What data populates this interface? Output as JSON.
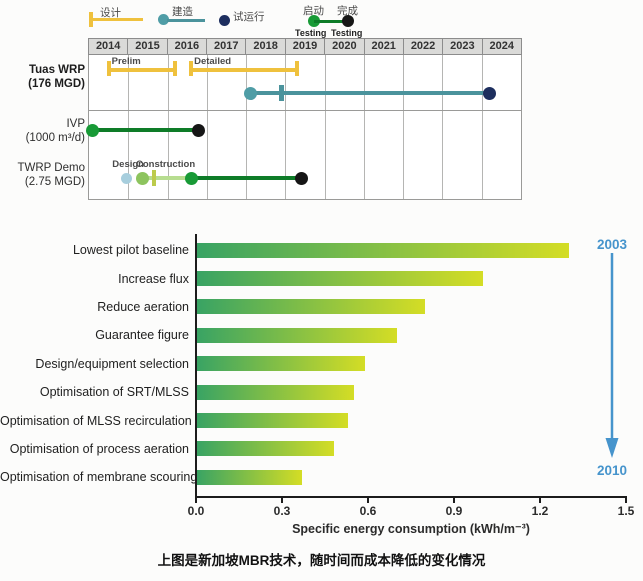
{
  "caption": "上图是新加坡MBR技术，随时间而成本降低的变化情况",
  "colors": {
    "yellow": "#efc13d",
    "teal": "#4b939c",
    "teal_light": "#4f9da6",
    "navy": "#1d2e5e",
    "green": "#189a36",
    "dark_green": "#0e7c28",
    "black": "#161616",
    "light_blue": "#a7cedd",
    "light_green": "#8dc45e",
    "light_green_line": "#b7dd90",
    "olive": "#bccb4b",
    "annotation_blue": "#4694cc",
    "bar_start": "#38a364",
    "bar_end": "#d4dd25"
  },
  "chart_data": [
    {
      "type": "gantt",
      "years": [
        2014,
        2015,
        2016,
        2017,
        2018,
        2019,
        2020,
        2021,
        2022,
        2023,
        2024
      ],
      "year_range": [
        2014,
        2025
      ],
      "legend": {
        "design": "设计",
        "construction": "建造",
        "trial_run": "试运行",
        "test_start": "启动",
        "test_start_sub": "Testing",
        "test_end": "完成",
        "test_end_sub": "Testing"
      },
      "rows": [
        {
          "label": "Tuas WRP",
          "sublabel": "(176 MGD)",
          "elements": [
            {
              "kind": "capbar",
              "label": "Prelim",
              "color": "yellow",
              "start": 2014.5,
              "end": 2016.2,
              "lane": 0
            },
            {
              "kind": "capbar",
              "label": "Detailed",
              "color": "yellow",
              "start": 2016.6,
              "end": 2019.3,
              "lane": 0
            },
            {
              "kind": "testline",
              "start": 2018.1,
              "end": 2024.2,
              "tick": 2018.9,
              "line": "teal",
              "tick_color": "teal",
              "start_dot": "teal_light",
              "end_dot": "navy",
              "lane": 1
            }
          ]
        },
        {
          "label": "IVP",
          "sublabel": "(1000 m³/d)",
          "elements": [
            {
              "kind": "testline",
              "start": 2014.1,
              "end": 2016.8,
              "line": "dark_green",
              "start_dot": "green",
              "end_dot": "black",
              "lane": 0
            }
          ]
        },
        {
          "label": "TWRP Demo",
          "sublabel": "(2.75 MGD)",
          "elements": [
            {
              "kind": "dot",
              "at": 2014.95,
              "color": "light_blue",
              "label": "Design",
              "lane": 0
            },
            {
              "kind": "testline",
              "start": 2015.35,
              "end": 2016.6,
              "tick": 2015.65,
              "line": "light_green_line",
              "tick_color": "olive",
              "start_dot": "light_green",
              "label": "Construction",
              "lane": 0
            },
            {
              "kind": "testline",
              "start": 2016.6,
              "end": 2019.4,
              "line": "dark_green",
              "start_dot": "green",
              "end_dot": "black",
              "lane": 0
            }
          ]
        }
      ]
    },
    {
      "type": "bar",
      "categories": [
        "Lowest pilot baseline",
        "Increase flux",
        "Reduce aeration",
        "Guarantee figure",
        "Design/equipment selection",
        "Optimisation of SRT/MLSS",
        "Optimisation of MLSS recirculation",
        "Optimisation of process aeration",
        "Optimisation of membrane scouring"
      ],
      "values": [
        1.3,
        1.0,
        0.8,
        0.7,
        0.59,
        0.55,
        0.53,
        0.48,
        0.37
      ],
      "xlim": [
        0,
        1.5
      ],
      "xticks": [
        "0.0",
        "0.3",
        "0.6",
        "0.9",
        "1.2",
        "1.5"
      ],
      "xlabel": "Specific energy consumption (kWh/m⁻³)",
      "ylabel": "",
      "grid": false,
      "legend_position": "none",
      "annotation": {
        "start_year": "2003",
        "end_year": "2010"
      }
    }
  ]
}
